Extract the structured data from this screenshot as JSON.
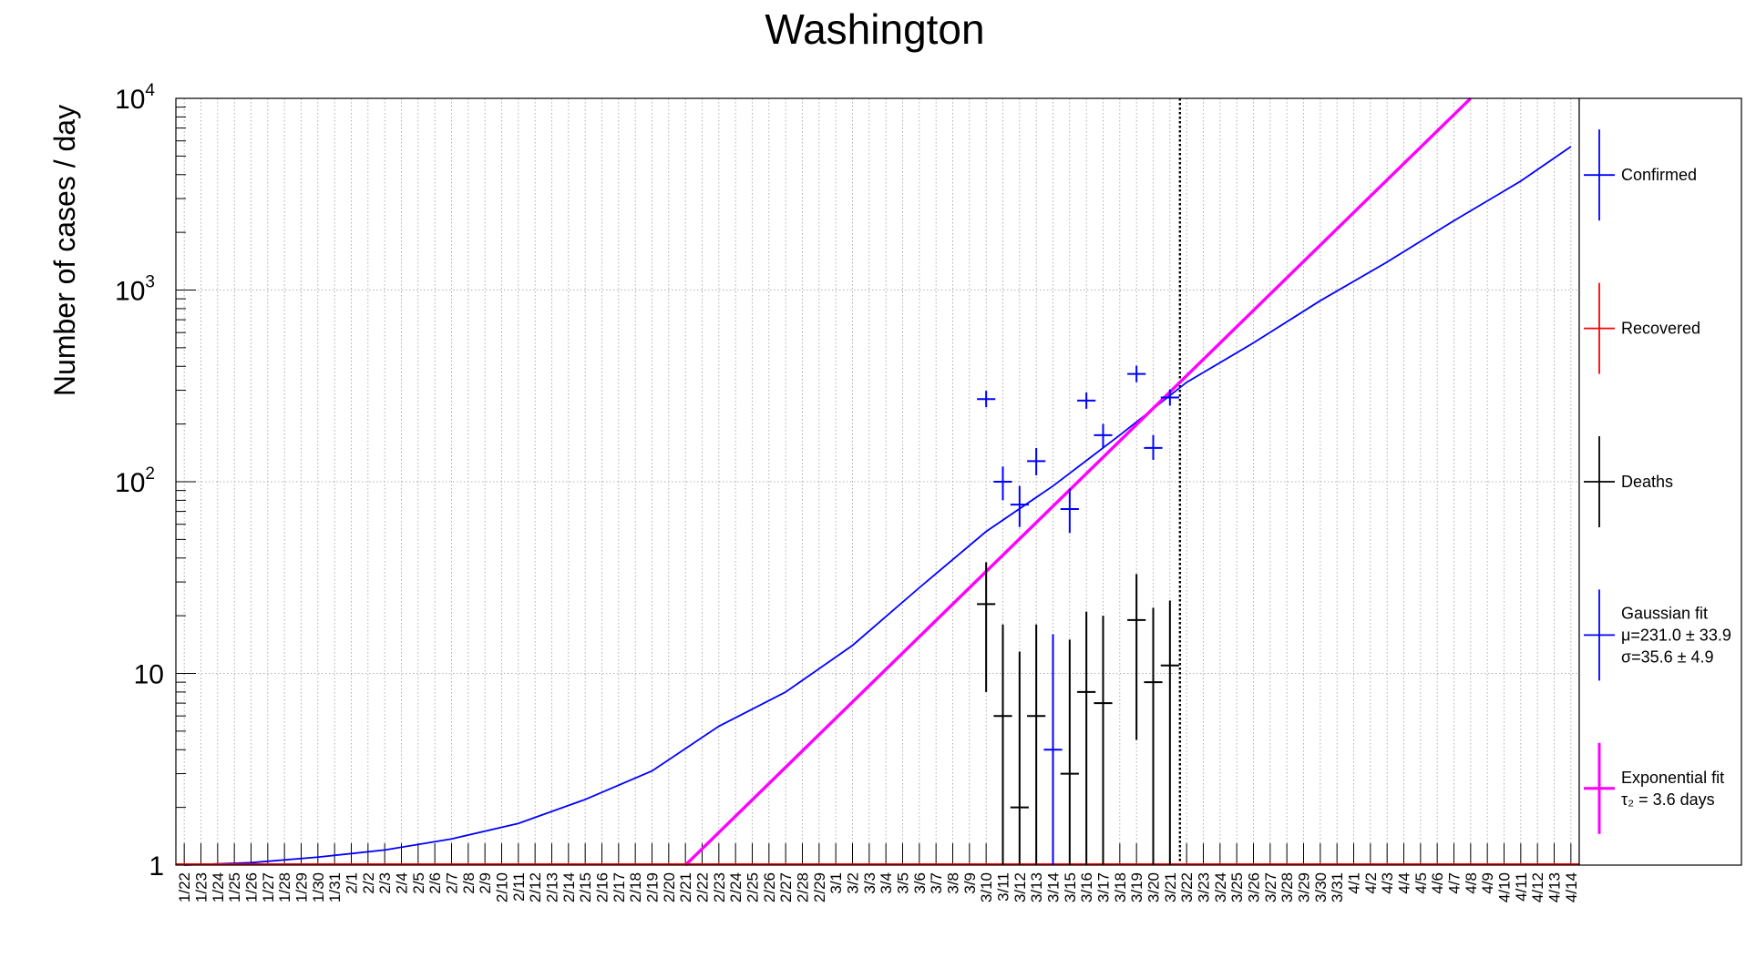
{
  "chart_data": {
    "type": "scatter",
    "title": "Washington",
    "xlabel": "",
    "ylabel": "Number of cases / day",
    "yscale": "log",
    "ylim": [
      1,
      10000
    ],
    "grid": true,
    "legend_position": "right",
    "x_tick_labels": [
      "1/22",
      "1/23",
      "1/24",
      "1/25",
      "1/26",
      "1/27",
      "1/28",
      "1/29",
      "1/30",
      "1/31",
      "2/1",
      "2/2",
      "2/3",
      "2/4",
      "2/5",
      "2/6",
      "2/7",
      "2/8",
      "2/9",
      "2/10",
      "2/11",
      "2/12",
      "2/13",
      "2/14",
      "2/15",
      "2/16",
      "2/17",
      "2/18",
      "2/19",
      "2/20",
      "2/21",
      "2/22",
      "2/23",
      "2/24",
      "2/25",
      "2/26",
      "2/27",
      "2/28",
      "2/29",
      "3/1",
      "3/2",
      "3/3",
      "3/4",
      "3/5",
      "3/6",
      "3/7",
      "3/8",
      "3/9",
      "3/10",
      "3/11",
      "3/12",
      "3/13",
      "3/14",
      "3/15",
      "3/16",
      "3/17",
      "3/18",
      "3/19",
      "3/20",
      "3/21",
      "3/22",
      "3/23",
      "3/24",
      "3/25",
      "3/26",
      "3/27",
      "3/28",
      "3/29",
      "3/30",
      "3/31",
      "4/1",
      "4/2",
      "4/3",
      "4/4",
      "4/5",
      "4/6",
      "4/7",
      "4/8",
      "4/9",
      "4/10",
      "4/11",
      "4/12",
      "4/13",
      "4/14"
    ],
    "y_tick_labels": [
      {
        "value": 1,
        "base": "1",
        "exp": ""
      },
      {
        "value": 10,
        "base": "10",
        "exp": ""
      },
      {
        "value": 100,
        "base": "10",
        "exp": "2"
      },
      {
        "value": 1000,
        "base": "10",
        "exp": "3"
      },
      {
        "value": 10000,
        "base": "10",
        "exp": "4"
      }
    ],
    "vertical_marker": "3/22",
    "series": [
      {
        "name": "Confirmed",
        "color": "#0000ff",
        "points": [
          {
            "x": "3/10",
            "y": 270,
            "ylo": 270,
            "yhi": 270
          },
          {
            "x": "3/11",
            "y": 100,
            "ylo": 80,
            "yhi": 120
          },
          {
            "x": "3/12",
            "y": 76,
            "ylo": 58,
            "yhi": 95
          },
          {
            "x": "3/13",
            "y": 128,
            "ylo": 108,
            "yhi": 150
          },
          {
            "x": "3/14",
            "y": 4,
            "ylo": 1,
            "yhi": 16
          },
          {
            "x": "3/15",
            "y": 72,
            "ylo": 54,
            "yhi": 92
          },
          {
            "x": "3/16",
            "y": 265,
            "ylo": 265,
            "yhi": 265
          },
          {
            "x": "3/17",
            "y": 175,
            "ylo": 150,
            "yhi": 200
          },
          {
            "x": "3/19",
            "y": 365,
            "ylo": 365,
            "yhi": 365
          },
          {
            "x": "3/20",
            "y": 150,
            "ylo": 130,
            "yhi": 175
          },
          {
            "x": "3/21",
            "y": 275,
            "ylo": 275,
            "yhi": 275
          }
        ]
      },
      {
        "name": "Recovered",
        "color": "#ff0000",
        "points": []
      },
      {
        "name": "Deaths",
        "color": "#000000",
        "points": [
          {
            "x": "3/10",
            "y": 23,
            "ylo": 8,
            "yhi": 38
          },
          {
            "x": "3/11",
            "y": 6,
            "ylo": 1,
            "yhi": 18
          },
          {
            "x": "3/12",
            "y": 2,
            "ylo": 1,
            "yhi": 13
          },
          {
            "x": "3/13",
            "y": 6,
            "ylo": 1,
            "yhi": 18
          },
          {
            "x": "3/15",
            "y": 3,
            "ylo": 1,
            "yhi": 15
          },
          {
            "x": "3/16",
            "y": 8,
            "ylo": 1,
            "yhi": 21
          },
          {
            "x": "3/17",
            "y": 7,
            "ylo": 1,
            "yhi": 20
          },
          {
            "x": "3/19",
            "y": 19,
            "ylo": 4.5,
            "yhi": 33
          },
          {
            "x": "3/20",
            "y": 9,
            "ylo": 1,
            "yhi": 22
          },
          {
            "x": "3/21",
            "y": 11,
            "ylo": 1,
            "yhi": 24
          }
        ]
      },
      {
        "name": "Gaussian fit",
        "label_lines": [
          "Gaussian fit",
          "μ=231.0 ± 33.9",
          "σ=35.6 ± 4.9"
        ],
        "color": "#0000ff",
        "curve": {
          "x": [
            "1/22",
            "1/26",
            "1/30",
            "2/3",
            "2/7",
            "2/11",
            "2/15",
            "2/19",
            "2/23",
            "2/27",
            "3/2",
            "3/6",
            "3/10",
            "3/14",
            "3/18",
            "3/22",
            "3/26",
            "3/30",
            "4/3",
            "4/7",
            "4/11",
            "4/14"
          ],
          "y": [
            1.0,
            1.03,
            1.1,
            1.2,
            1.37,
            1.65,
            2.2,
            3.1,
            5.3,
            8.0,
            14,
            28,
            55,
            95,
            175,
            330,
            530,
            880,
            1400,
            2300,
            3700,
            5600
          ]
        }
      },
      {
        "name": "Exponential fit",
        "label_lines": [
          "Exponential fit",
          "τ₂ = 3.6 days"
        ],
        "color": "#ff00ff",
        "curve": {
          "x": [
            "2/21",
            "4/8"
          ],
          "y": [
            1,
            10000
          ]
        }
      }
    ]
  }
}
